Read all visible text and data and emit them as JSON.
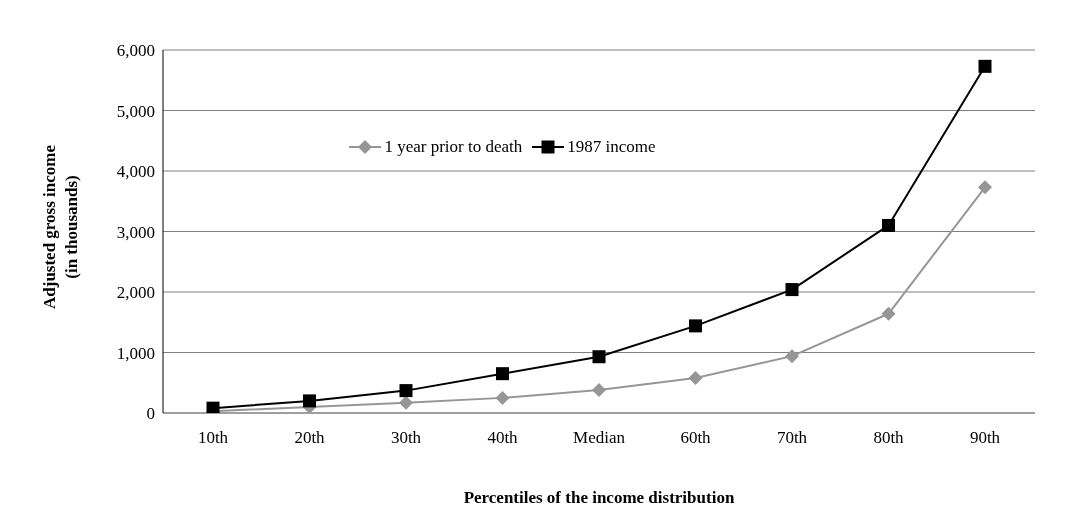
{
  "chart_data": {
    "type": "line",
    "xlabel": "Percentiles of the income distribution",
    "ylabel": "Adjusted gross income (in thousands)",
    "categories": [
      "10th",
      "20th",
      "30th",
      "40th",
      "Median",
      "60th",
      "70th",
      "80th",
      "90th"
    ],
    "series": [
      {
        "name": "1 year prior to death",
        "color": "#969696",
        "marker": "diamond",
        "values": [
          30,
          100,
          170,
          250,
          380,
          580,
          940,
          1640,
          3730
        ]
      },
      {
        "name": "1987 income",
        "color": "#000000",
        "marker": "square",
        "values": [
          80,
          200,
          370,
          650,
          930,
          1440,
          2040,
          3100,
          5730
        ]
      }
    ],
    "ylim": [
      0,
      6000
    ],
    "yticks": [
      {
        "value": 0,
        "label": "0"
      },
      {
        "value": 1000,
        "label": "1,000"
      },
      {
        "value": 2000,
        "label": "2,000"
      },
      {
        "value": 3000,
        "label": "3,000"
      },
      {
        "value": 4000,
        "label": "4,000"
      },
      {
        "value": 5000,
        "label": "5,000"
      },
      {
        "value": 6000,
        "label": "6,000"
      }
    ],
    "grid": "y",
    "legend": "top",
    "line_style": "solid"
  }
}
